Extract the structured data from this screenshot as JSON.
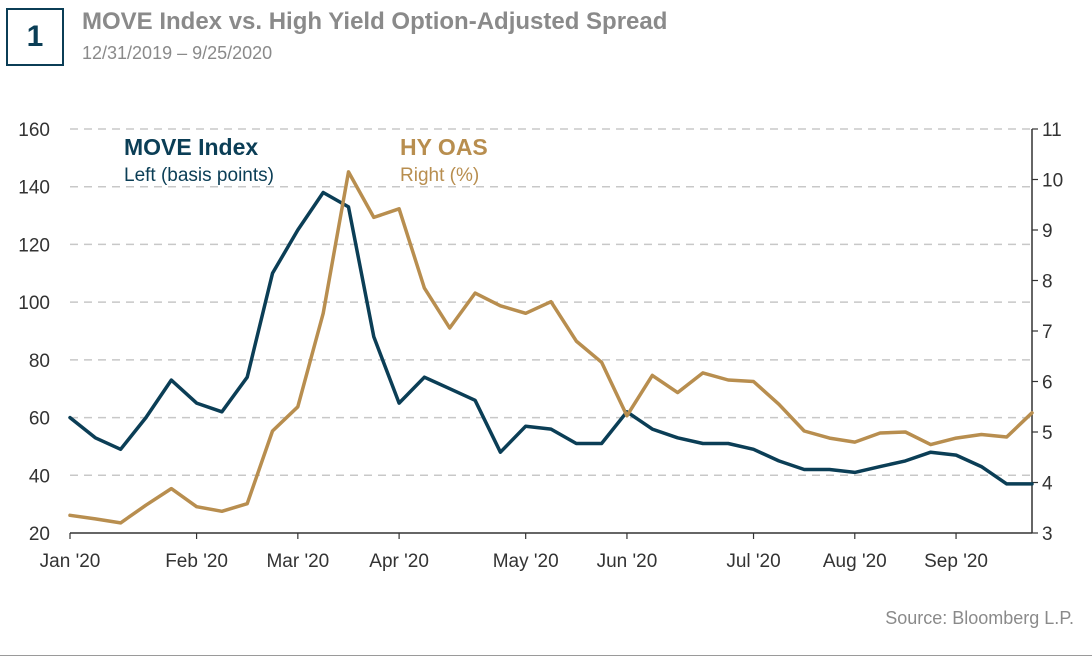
{
  "header": {
    "figure_number": "1",
    "title": "MOVE Index vs. High Yield Option-Adjusted Spread",
    "subtitle": "12/31/2019 – 9/25/2020"
  },
  "footer": {
    "source": "Source: Bloomberg L.P."
  },
  "colors": {
    "move": "#0b3e56",
    "hy": "#b88e4f",
    "axis": "#333333",
    "grid": "#c8c8c8",
    "text_gray": "#8a8a8a"
  },
  "chart_data": {
    "type": "line",
    "title": "MOVE Index vs. High Yield Option-Adjusted Spread",
    "x_labels": [
      "Jan '20",
      "Feb '20",
      "Mar '20",
      "Apr '20",
      "May '20",
      "Jun '20",
      "Jul '20",
      "Aug '20",
      "Sep '20"
    ],
    "x_label_weeks": [
      0,
      5,
      9,
      13,
      18,
      22,
      27,
      31,
      35
    ],
    "x_range": [
      0,
      38
    ],
    "left_axis": {
      "label": "Left (basis points)",
      "range": [
        20,
        160
      ],
      "ticks": [
        20,
        40,
        60,
        80,
        100,
        120,
        140,
        160
      ]
    },
    "right_axis": {
      "label": "Right (%)",
      "range": [
        3,
        11
      ],
      "ticks": [
        3,
        4,
        5,
        6,
        7,
        8,
        9,
        10,
        11
      ]
    },
    "series": [
      {
        "name": "MOVE Index",
        "axis": "left",
        "legend_title": "MOVE Index",
        "legend_subtitle": "Left (basis points)",
        "x": [
          0,
          1,
          2,
          3,
          4,
          5,
          6,
          7,
          8,
          9,
          10,
          11,
          12,
          13,
          14,
          15,
          16,
          17,
          18,
          19,
          20,
          21,
          22,
          23,
          24,
          25,
          26,
          27,
          28,
          29,
          30,
          31,
          32,
          33,
          34,
          35,
          36,
          37,
          38
        ],
        "values": [
          60,
          53,
          49,
          60,
          73,
          65,
          62,
          74,
          110,
          125,
          138,
          133,
          88,
          65,
          74,
          70,
          66,
          48,
          57,
          56,
          51,
          51,
          62,
          56,
          53,
          51,
          51,
          49,
          45,
          42,
          42,
          41,
          43,
          45,
          48,
          47,
          43,
          37,
          37
        ]
      },
      {
        "name": "HY OAS",
        "axis": "right",
        "legend_title": "HY OAS",
        "legend_subtitle": "Right (%)",
        "x": [
          0,
          1,
          2,
          3,
          4,
          5,
          6,
          7,
          8,
          9,
          10,
          11,
          12,
          13,
          14,
          15,
          16,
          17,
          18,
          19,
          20,
          21,
          22,
          23,
          24,
          25,
          26,
          27,
          28,
          29,
          30,
          31,
          32,
          33,
          34,
          35,
          36,
          37,
          38
        ],
        "values": [
          3.35,
          3.28,
          3.2,
          3.55,
          3.88,
          3.52,
          3.43,
          3.58,
          5.02,
          5.5,
          7.35,
          10.15,
          9.25,
          9.42,
          7.85,
          7.06,
          7.75,
          7.5,
          7.35,
          7.58,
          6.8,
          6.38,
          5.32,
          6.12,
          5.78,
          6.17,
          6.03,
          6.0,
          5.55,
          5.02,
          4.88,
          4.8,
          4.98,
          5.0,
          4.75,
          4.88,
          4.95,
          4.9,
          5.38
        ]
      }
    ]
  }
}
